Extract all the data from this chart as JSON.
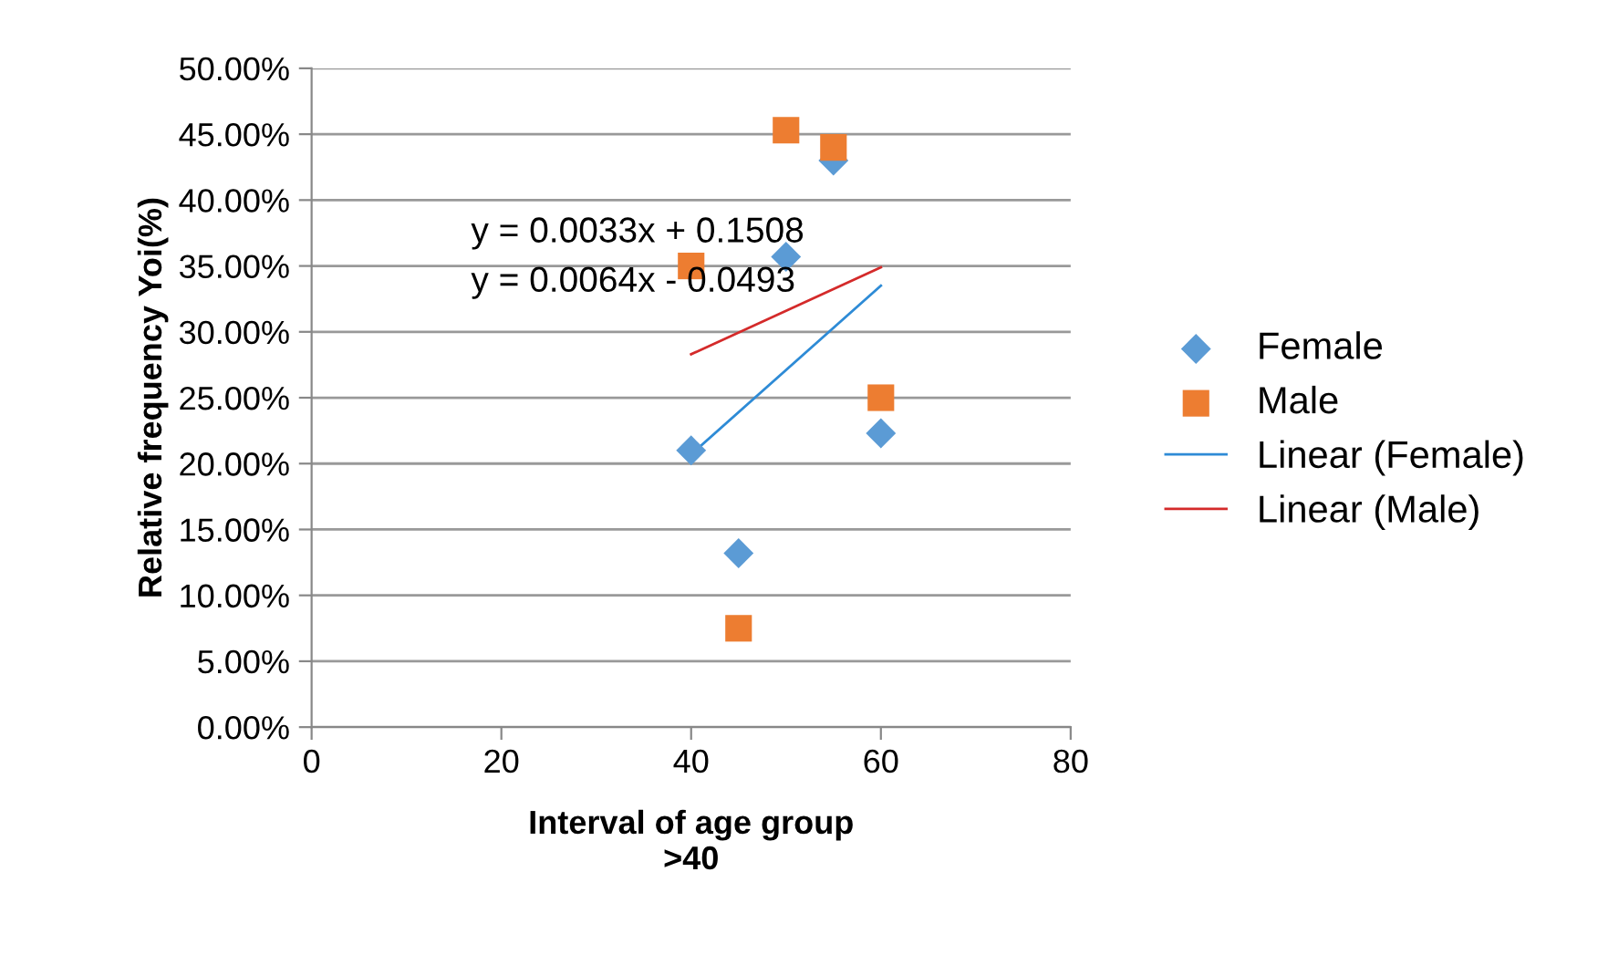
{
  "chart_data": {
    "type": "scatter",
    "xlabel": "Interval of age group\n>40",
    "ylabel": "Relative frequency Yoi(%)",
    "xlim": [
      0,
      80
    ],
    "xticks": [
      0,
      20,
      40,
      60,
      80
    ],
    "ylim": [
      0,
      50
    ],
    "yticks": [
      {
        "value": 0,
        "label": "0.00%"
      },
      {
        "value": 5,
        "label": "5.00%"
      },
      {
        "value": 10,
        "label": "10.00%"
      },
      {
        "value": 15,
        "label": "15.00%"
      },
      {
        "value": 20,
        "label": "20.00%"
      },
      {
        "value": 25,
        "label": "25.00%"
      },
      {
        "value": 30,
        "label": "30.00%"
      },
      {
        "value": 35,
        "label": "35.00%"
      },
      {
        "value": 40,
        "label": "40.00%"
      },
      {
        "value": 45,
        "label": "45.00%"
      },
      {
        "value": 50,
        "label": "50.00%"
      }
    ],
    "grid": "y",
    "legend": "right",
    "series": [
      {
        "name": "Female",
        "marker": "diamond",
        "color": "#5b9bd5",
        "x": [
          40,
          45,
          50,
          55,
          60
        ],
        "values": [
          21.0,
          13.2,
          35.7,
          43.0,
          22.3
        ]
      },
      {
        "name": "Male",
        "marker": "square",
        "color": "#ed7d31",
        "x": [
          40,
          45,
          50,
          55,
          60
        ],
        "values": [
          35.0,
          7.5,
          45.3,
          44.0,
          25.0
        ]
      },
      {
        "name": "Linear (Female)",
        "type": "line",
        "marker": "none",
        "color": "#2e8bd6",
        "x": [
          40,
          60
        ],
        "values": [
          20.7,
          33.5
        ]
      },
      {
        "name": "Linear (Male)",
        "type": "line",
        "marker": "none",
        "color": "#d42a2a",
        "x": [
          40,
          60
        ],
        "values": [
          28.3,
          34.9
        ]
      }
    ],
    "annotations": [
      "y = 0.0033x + 0.1508",
      "y = 0.0064x - 0.0493"
    ]
  }
}
